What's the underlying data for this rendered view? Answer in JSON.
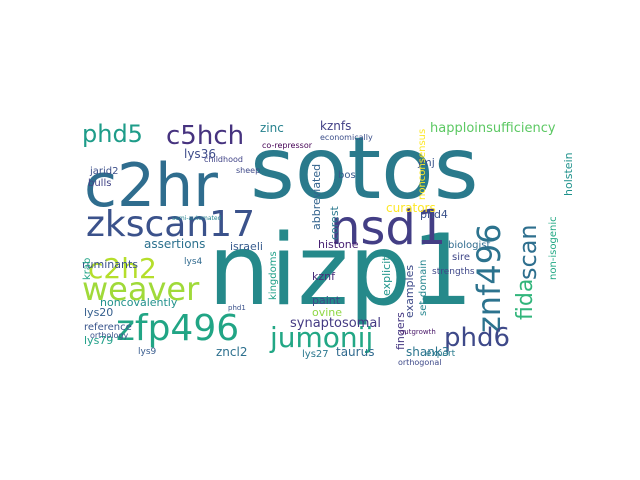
{
  "words": [
    {
      "text": "sotos",
      "color": "#2a7a8c"
    },
    {
      "text": "nizp1",
      "color": "#25898a"
    },
    {
      "text": "c2hr",
      "color": "#2f6d8e"
    },
    {
      "text": "zkscan17",
      "color": "#3b528b"
    },
    {
      "text": "nsd1",
      "color": "#433e85"
    },
    {
      "text": "znf496",
      "color": "#2c738e"
    },
    {
      "text": "weaver",
      "color": "#a0da39"
    },
    {
      "text": "c2h2",
      "color": "#b5de2b"
    },
    {
      "text": "zfp496",
      "color": "#21a585"
    },
    {
      "text": "jumonij",
      "color": "#22a785"
    },
    {
      "text": "phd5",
      "color": "#1e9c89"
    },
    {
      "text": "c5hch",
      "color": "#46337f"
    },
    {
      "text": "phd6",
      "color": "#3e4989"
    },
    {
      "text": "scan",
      "color": "#2e6f8e"
    },
    {
      "text": "fida",
      "color": "#31b57b"
    },
    {
      "text": "happloinsufficiency",
      "color": "#5cc863"
    },
    {
      "text": "kznfs",
      "color": "#424086"
    },
    {
      "text": "zinc",
      "color": "#26828e"
    },
    {
      "text": "lys36",
      "color": "#3e4c8a"
    },
    {
      "text": "assertions",
      "color": "#2c718e"
    },
    {
      "text": "israeli",
      "color": "#375b8d"
    },
    {
      "text": "histone",
      "color": "#482173"
    },
    {
      "text": "synaptosomal",
      "color": "#443a83"
    },
    {
      "text": "zncl2",
      "color": "#2d708e"
    },
    {
      "text": "lys27",
      "color": "#2a778e"
    },
    {
      "text": "taurus",
      "color": "#306a8e"
    },
    {
      "text": "shank3",
      "color": "#2b758e"
    },
    {
      "text": "curators",
      "color": "#fde725"
    },
    {
      "text": "holstein",
      "color": "#20928c"
    },
    {
      "text": "non-isogenic",
      "color": "#22a884"
    },
    {
      "text": "biologist",
      "color": "#2f6b8e"
    },
    {
      "text": "phd4",
      "color": "#3b528b"
    },
    {
      "text": "sire",
      "color": "#3f4788"
    },
    {
      "text": "explicit",
      "color": "#1f958b"
    },
    {
      "text": "examples",
      "color": "#3e4a89"
    },
    {
      "text": "set-domain",
      "color": "#25858e"
    },
    {
      "text": "fingers",
      "color": "#453781"
    },
    {
      "text": "kingdoms",
      "color": "#1fa088"
    },
    {
      "text": "ovine",
      "color": "#8fd744"
    },
    {
      "text": "paint",
      "color": "#3e4989"
    },
    {
      "text": "kznf",
      "color": "#472c7a"
    },
    {
      "text": "corest",
      "color": "#2a788e"
    },
    {
      "text": "abbreviated",
      "color": "#33638d"
    },
    {
      "text": "bos",
      "color": "#375a8c"
    },
    {
      "text": "jmj",
      "color": "#3a548c"
    },
    {
      "text": "nonconsensus",
      "color": "#fde725"
    },
    {
      "text": "strengths",
      "color": "#3f4889"
    },
    {
      "text": "lys20",
      "color": "#355f8d"
    },
    {
      "text": "reference",
      "color": "#39558c"
    },
    {
      "text": "noncovalently",
      "color": "#21918c"
    },
    {
      "text": "ruminants",
      "color": "#3b518b"
    },
    {
      "text": "krab",
      "color": "#20a386"
    },
    {
      "text": "bulls",
      "color": "#404387"
    },
    {
      "text": "jarid2",
      "color": "#3c4f8a"
    },
    {
      "text": "co-repressor",
      "color": "#440154"
    },
    {
      "text": "childhood",
      "color": "#414487"
    },
    {
      "text": "sheep",
      "color": "#3e4989"
    },
    {
      "text": "lys79",
      "color": "#1f9f88"
    },
    {
      "text": "lys9",
      "color": "#375b8d"
    },
    {
      "text": "lys4",
      "color": "#306a8e"
    },
    {
      "text": "expert",
      "color": "#2a7b8e"
    },
    {
      "text": "orthogonal",
      "color": "#3e4a89"
    },
    {
      "text": "orthology",
      "color": "#3b528b"
    },
    {
      "text": "economically",
      "color": "#3c4f8a"
    },
    {
      "text": "semi-automated",
      "color": "#25838e"
    },
    {
      "text": "outgrowth",
      "color": "#481668"
    },
    {
      "text": "phd1",
      "color": "#3b528b"
    }
  ]
}
